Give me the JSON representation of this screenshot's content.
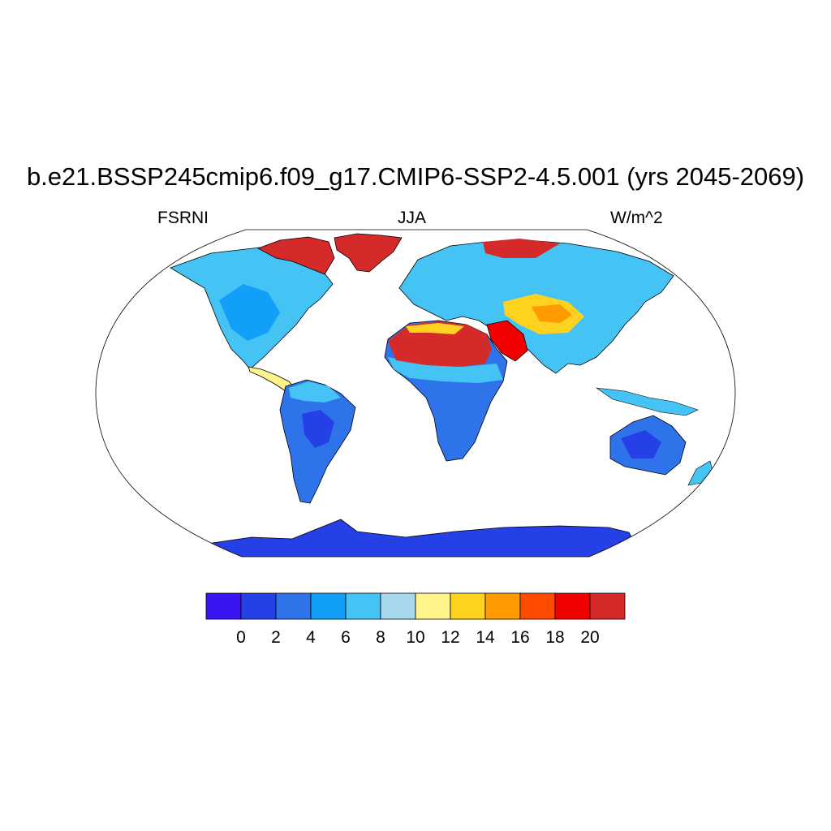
{
  "header": {
    "title": "b.e21.BSSP245cmip6.f09_g17.CMIP6-SSP2-4.5.001 (yrs 2045-2069)",
    "left_label": "FSRNI",
    "center_label": "JJA",
    "right_label": "W/m^2"
  },
  "map": {
    "projection": "Robinson",
    "ocean_masked": true,
    "land_regions": [
      {
        "name": "North America",
        "level": 6
      },
      {
        "name": "Canadian Arctic Archipelago",
        "level": 20
      },
      {
        "name": "Greenland",
        "level": 20
      },
      {
        "name": "Central America",
        "level": 10
      },
      {
        "name": "South America",
        "level": 4
      },
      {
        "name": "Europe and Asia",
        "level": 6
      },
      {
        "name": "Siberian Arctic coast",
        "level": 18
      },
      {
        "name": "Sahara",
        "level": 20
      },
      {
        "name": "Arabian Peninsula",
        "level": 18
      },
      {
        "name": "Central Asia",
        "level": 14
      },
      {
        "name": "Sub-Saharan Africa",
        "level": 4
      },
      {
        "name": "Australia",
        "level": 2
      },
      {
        "name": "Antarctica",
        "level": 0
      }
    ]
  },
  "colorbar": {
    "ticks": [
      "0",
      "2",
      "4",
      "6",
      "8",
      "10",
      "12",
      "14",
      "16",
      "18",
      "20"
    ],
    "colors": [
      "#3a14f2",
      "#2440e6",
      "#2f73ea",
      "#119ff7",
      "#45c3f5",
      "#a8d8ee",
      "#fff48a",
      "#ffd21f",
      "#ff9b00",
      "#ff4c00",
      "#f20000",
      "#d52a2a"
    ]
  }
}
